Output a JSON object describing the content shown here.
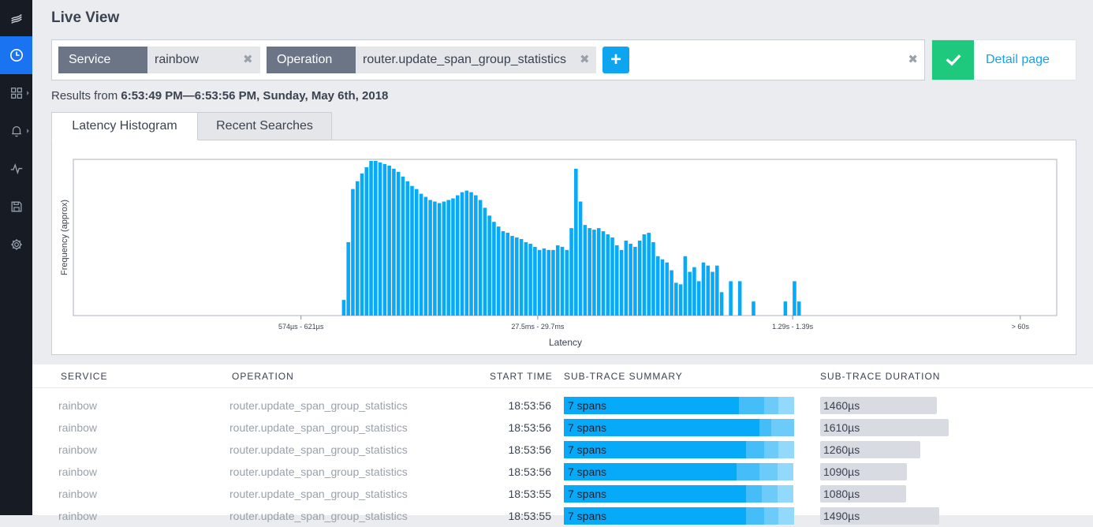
{
  "page": {
    "title": "Live View"
  },
  "sidebar": {
    "icons": [
      "logo-icon",
      "clock-icon",
      "grid-icon",
      "bell-icon",
      "pulse-icon",
      "save-icon",
      "gear-icon"
    ]
  },
  "query": {
    "service_label": "Service",
    "service_value": "rainbow",
    "operation_label": "Operation",
    "operation_value": "router.update_span_group_statistics",
    "remove_glyph": "✖",
    "add_glyph": "+",
    "clear_glyph": "✖"
  },
  "detail": {
    "link_label": "Detail page"
  },
  "results": {
    "prefix": "Results from ",
    "range": "6:53:49 PM—6:53:56 PM, Sunday, May 6th, 2018"
  },
  "tabs": {
    "histogram": "Latency Histogram",
    "recent": "Recent Searches"
  },
  "colors": {
    "accent": "#0ea5f0",
    "bar": "#07aaf8",
    "success": "#1ec97e",
    "sidebar_active": "#1a73f0"
  },
  "chart_data": {
    "type": "bar",
    "title": "",
    "xlabel": "Latency",
    "ylabel": "Frequency (approx)",
    "tick_labels": [
      "574µs - 621µs",
      "27.5ms - 29.7ms",
      "1.29s - 1.39s",
      "> 60s"
    ],
    "tick_bins": [
      50,
      102,
      158,
      208
    ],
    "total_bins": 216,
    "first_bin": 59,
    "ylim": [
      0,
      100
    ],
    "values": [
      10,
      47,
      81,
      86,
      91,
      95,
      99,
      99,
      98,
      97,
      96,
      94,
      92,
      89,
      86,
      83,
      81,
      78,
      76,
      74,
      73,
      72,
      73,
      74,
      75,
      77,
      79,
      80,
      79,
      77,
      74,
      69,
      64,
      60,
      57,
      54,
      53,
      51,
      50,
      49,
      47,
      46,
      44,
      42,
      43,
      42,
      42,
      45,
      44,
      42,
      56,
      94,
      73,
      58,
      56,
      55,
      56,
      54,
      52,
      50,
      45,
      42,
      48,
      46,
      44,
      48,
      52,
      53,
      47,
      38,
      36,
      34,
      29,
      21,
      20,
      38,
      28,
      31,
      22,
      34,
      32,
      28,
      32,
      15,
      0,
      22,
      0,
      22,
      0,
      0,
      9,
      0,
      0,
      0,
      0,
      0,
      0,
      9,
      0,
      22,
      9
    ],
    "fill_series": "Frequency"
  },
  "table": {
    "headers": {
      "service": "SERVICE",
      "operation": "OPERATION",
      "start_time": "START TIME",
      "summary": "SUB-TRACE SUMMARY",
      "duration": "SUB-TRACE DURATION"
    },
    "rows": [
      {
        "service": "rainbow",
        "operation": "router.update_span_group_statistics",
        "start_time": "18:53:56",
        "summary": "7 spans",
        "duration": "1460µs",
        "duration_us": 1460,
        "segments": [
          76,
          11,
          6,
          7
        ]
      },
      {
        "service": "rainbow",
        "operation": "router.update_span_group_statistics",
        "start_time": "18:53:56",
        "summary": "7 spans",
        "duration": "1610µs",
        "duration_us": 1610,
        "segments": [
          85,
          5,
          10,
          0
        ]
      },
      {
        "service": "rainbow",
        "operation": "router.update_span_group_statistics",
        "start_time": "18:53:56",
        "summary": "7 spans",
        "duration": "1260µs",
        "duration_us": 1260,
        "segments": [
          79,
          8,
          6,
          7
        ]
      },
      {
        "service": "rainbow",
        "operation": "router.update_span_group_statistics",
        "start_time": "18:53:56",
        "summary": "7 spans",
        "duration": "1090µs",
        "duration_us": 1090,
        "segments": [
          75,
          10,
          8,
          7
        ]
      },
      {
        "service": "rainbow",
        "operation": "router.update_span_group_statistics",
        "start_time": "18:53:55",
        "summary": "7 spans",
        "duration": "1080µs",
        "duration_us": 1080,
        "segments": [
          79,
          7,
          7,
          7
        ]
      },
      {
        "service": "rainbow",
        "operation": "router.update_span_group_statistics",
        "start_time": "18:53:55",
        "summary": "7 spans",
        "duration": "1490µs",
        "duration_us": 1490,
        "segments": [
          79,
          8,
          6,
          7
        ]
      }
    ],
    "duration_scale_max_us": 1700
  }
}
